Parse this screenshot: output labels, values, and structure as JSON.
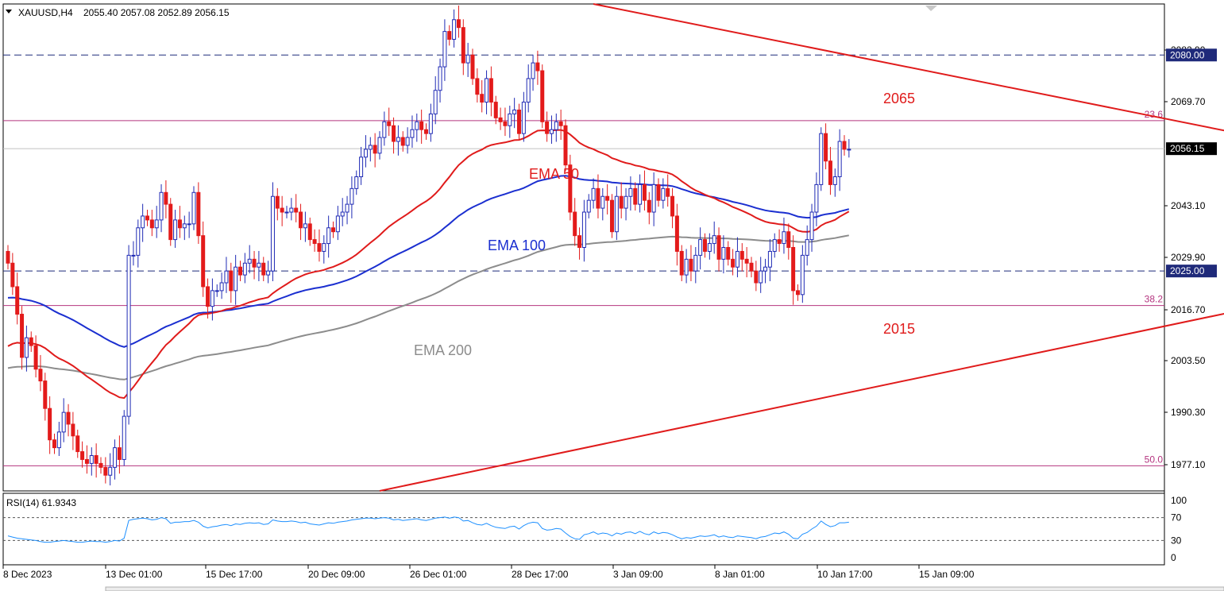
{
  "header": {
    "symbol": "XAUUSD,H4",
    "ohlc": "2055.40 2057.08 2052.89 2056.15"
  },
  "chart_data": {
    "type": "candlestick",
    "symbol": "XAUUSD",
    "timeframe": "H4",
    "ylim": [
      1969,
      2093
    ],
    "y_ticks": [
      "2082.90",
      "2069.70",
      "2043.10",
      "2029.90",
      "2016.70",
      "2003.50",
      "1990.30",
      "1977.10"
    ],
    "x_ticks": [
      "8 Dec 2023",
      "13 Dec 01:00",
      "15 Dec 17:00",
      "20 Dec 09:00",
      "26 Dec 01:00",
      "28 Dec 17:00",
      "3 Jan 09:00",
      "8 Jan 01:00",
      "10 Jan 17:00",
      "15 Jan 09:00"
    ],
    "current_price": "2056.15",
    "horizontal_levels": [
      {
        "price": 2080.0,
        "label": "2080.00",
        "style": "dashed",
        "color": "#1f2a7a"
      },
      {
        "price": 2025.0,
        "label": "2025.00",
        "style": "dashed",
        "color": "#1f2a7a"
      }
    ],
    "fib_levels": [
      {
        "label": "23.6",
        "price": 2063.3
      },
      {
        "label": "38.2",
        "price": 2016.2
      },
      {
        "label": "50.0",
        "price": 1975.4
      }
    ],
    "annotations": [
      {
        "text": "2065",
        "color": "#e01b1b"
      },
      {
        "text": "2015",
        "color": "#e01b1b"
      },
      {
        "text": "EMA 50",
        "color": "#e01b1b"
      },
      {
        "text": "EMA 100",
        "color": "#1b2fd0"
      },
      {
        "text": "EMA 200",
        "color": "#8c8c8c"
      }
    ],
    "trendlines": [
      {
        "name": "descending resistance",
        "from": {
          "bar": 126,
          "price": 2093
        },
        "to": {
          "bar": 324,
          "price": 2046
        }
      },
      {
        "name": "ascending support",
        "from": {
          "bar": 80,
          "price": 1969
        },
        "to": {
          "bar": 370,
          "price": 2041
        }
      }
    ],
    "candles_close": [
      2027,
      2021,
      2014,
      2003,
      2008,
      2006,
      2000,
      1997,
      1990,
      1982,
      1980,
      1984,
      1989,
      1986,
      1983,
      1979,
      1977,
      1976,
      1978,
      1976,
      1975,
      1973,
      1975,
      1980,
      1977,
      1988,
      2029,
      2029,
      2036,
      2039,
      2038,
      2036,
      2038,
      2045,
      2042,
      2033,
      2038,
      2036,
      2037,
      2037,
      2045,
      2034,
      2021,
      2016,
      2020,
      2020,
      2022,
      2025,
      2020,
      2026,
      2024,
      2027,
      2028,
      2026,
      2027,
      2024,
      2025,
      2044,
      2041,
      2040,
      2040,
      2041,
      2040,
      2036,
      2037,
      2033,
      2032,
      2030,
      2032,
      2036,
      2035,
      2039,
      2040,
      2042,
      2046,
      2049,
      2054,
      2056,
      2057,
      2055,
      2059,
      2063,
      2062,
      2058,
      2059,
      2057,
      2059,
      2061,
      2063,
      2061,
      2060,
      2065,
      2071,
      2077,
      2086,
      2084,
      2089,
      2087,
      2078,
      2080,
      2074,
      2070,
      2068,
      2074,
      2068,
      2064,
      2063,
      2062,
      2065,
      2066,
      2060,
      2068,
      2074,
      2078,
      2076,
      2063,
      2060,
      2061,
      2063,
      2062,
      2052,
      2040,
      2034,
      2031,
      2040,
      2043,
      2046,
      2041,
      2044,
      2043,
      2035,
      2044,
      2041,
      2044,
      2046,
      2042,
      2047,
      2043,
      2040,
      2047,
      2043,
      2046,
      2044,
      2039,
      2030,
      2024,
      2028,
      2025,
      2029,
      2033,
      2030,
      2032,
      2034,
      2028,
      2031,
      2028,
      2026,
      2030,
      2028,
      2027,
      2025,
      2022,
      2025,
      2026,
      2030,
      2033,
      2032,
      2035,
      2031,
      2020,
      2019,
      2029,
      2033,
      2040,
      2047,
      2060,
      2053,
      2047,
      2049,
      2058,
      2056,
      2056
    ],
    "ema50_shape": "red curve",
    "ema100_shape": "blue curve",
    "ema200_shape": "gray curve",
    "rsi": {
      "label": "RSI(14) 61.9343",
      "ylim": [
        0,
        100
      ],
      "y_ticks": [
        "100",
        "70",
        "30",
        "0"
      ],
      "levels": [
        70,
        30
      ],
      "values": [
        38,
        36,
        34,
        33,
        32,
        31,
        30,
        28,
        27,
        27,
        28,
        29,
        30,
        29,
        28,
        27,
        27,
        28,
        29,
        28,
        28,
        27,
        28,
        30,
        29,
        34,
        65,
        67,
        68,
        69,
        68,
        66,
        67,
        70,
        68,
        60,
        62,
        62,
        63,
        63,
        65,
        62,
        55,
        52,
        54,
        55,
        57,
        58,
        56,
        59,
        58,
        60,
        61,
        60,
        61,
        58,
        59,
        66,
        64,
        63,
        63,
        64,
        63,
        61,
        62,
        59,
        58,
        57,
        59,
        61,
        60,
        62,
        63,
        64,
        66,
        67,
        68,
        69,
        69,
        68,
        69,
        70,
        69,
        66,
        67,
        65,
        66,
        67,
        68,
        66,
        65,
        67,
        69,
        70,
        71,
        69,
        71,
        70,
        64,
        65,
        61,
        58,
        57,
        60,
        56,
        53,
        52,
        51,
        54,
        55,
        50,
        56,
        60,
        62,
        61,
        51,
        48,
        49,
        51,
        50,
        43,
        37,
        33,
        32,
        40,
        42,
        45,
        41,
        43,
        42,
        38,
        43,
        41,
        44,
        45,
        42,
        46,
        42,
        40,
        45,
        42,
        44,
        43,
        40,
        36,
        33,
        35,
        34,
        36,
        38,
        37,
        38,
        40,
        36,
        38,
        36,
        35,
        38,
        37,
        36,
        35,
        33,
        36,
        37,
        40,
        43,
        42,
        45,
        41,
        34,
        33,
        41,
        44,
        50,
        55,
        64,
        58,
        54,
        56,
        61,
        61,
        62
      ]
    }
  },
  "price_scale": {
    "current_label": "2056.15",
    "level_labels": [
      "2080.00",
      "2025.00"
    ]
  }
}
